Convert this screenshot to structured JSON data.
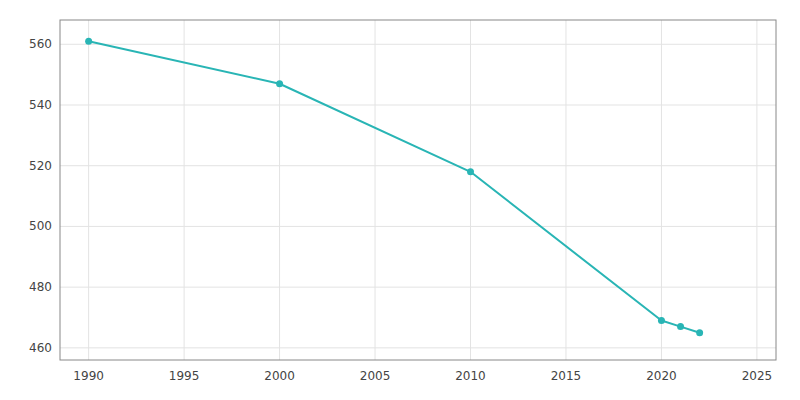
{
  "chart_data": {
    "type": "line",
    "x": [
      1990,
      2000,
      2010,
      2020,
      2021,
      2022
    ],
    "values": [
      561,
      547,
      518,
      469,
      467,
      465
    ],
    "color": "#29b5b5",
    "marker": "circle",
    "xlim": [
      1988.5,
      2026
    ],
    "xticks": [
      1990,
      1995,
      2000,
      2005,
      2010,
      2015,
      2020,
      2025
    ],
    "ylim": [
      456,
      568
    ],
    "yticks": [
      460,
      480,
      500,
      520,
      540,
      560
    ],
    "grid": true
  }
}
